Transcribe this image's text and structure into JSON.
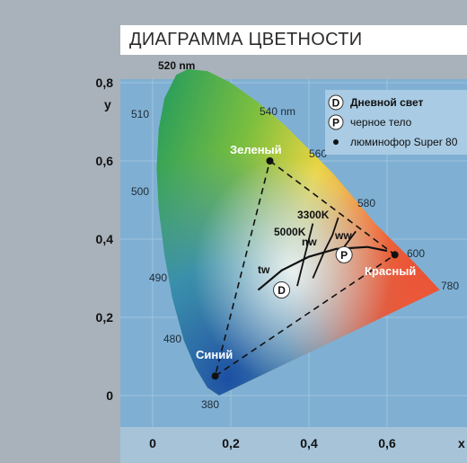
{
  "title": "ДИАГРАММА ЦВЕТНОСТИ",
  "colors": {
    "background": "#a9b2ba",
    "plot_background": "#7fb0d3",
    "green_region": "#3aa84a",
    "red_region": "#e8503a",
    "blue_region": "#1f5fa8"
  },
  "chart_data": {
    "type": "scatter",
    "title": "ДИАГРАММА ЦВЕТНОСТИ",
    "xlabel": "x",
    "ylabel": "y",
    "xlim": [
      0,
      0.8
    ],
    "ylim": [
      0,
      0.8
    ],
    "x_ticks": [
      "0",
      "0,2",
      "0,4",
      "0,6"
    ],
    "x_tick_values": [
      0,
      0.2,
      0.4,
      0.6
    ],
    "y_ticks": [
      "0",
      "0,2",
      "0,4",
      "0,6",
      "0,8"
    ],
    "y_tick_values": [
      0,
      0.2,
      0.4,
      0.6,
      0.8
    ],
    "grid": true,
    "spectral_locus_labels": [
      {
        "label": "520 nm",
        "x": 0.08,
        "y": 0.85
      },
      {
        "label": "540 nm",
        "x": 0.27,
        "y": 0.73
      },
      {
        "label": "560 nm",
        "x": 0.4,
        "y": 0.62
      },
      {
        "label": "580 nm",
        "x": 0.5,
        "y": 0.5
      },
      {
        "label": "600 nm",
        "x": 0.63,
        "y": 0.37
      },
      {
        "label": "780 nm",
        "x": 0.73,
        "y": 0.27
      },
      {
        "label": "510 nm",
        "x": 0.01,
        "y": 0.72
      },
      {
        "label": "500 nm",
        "x": 0.01,
        "y": 0.52
      },
      {
        "label": "490 nm",
        "x": 0.03,
        "y": 0.3
      },
      {
        "label": "480 nm",
        "x": 0.08,
        "y": 0.15
      },
      {
        "label": "380 nm",
        "x": 0.17,
        "y": 0.0
      }
    ],
    "spectral_locus_display": [
      "520 nm",
      "540 nm",
      "560",
      "580",
      "600",
      "780",
      "510",
      "500",
      "490",
      "480",
      "380"
    ],
    "phosphor_points": [
      {
        "name": "Зеленый",
        "x": 0.3,
        "y": 0.6
      },
      {
        "name": "Красный",
        "x": 0.62,
        "y": 0.36
      },
      {
        "name": "Синий",
        "x": 0.16,
        "y": 0.05
      }
    ],
    "cct_labels": [
      "3300K",
      "5000K"
    ],
    "zone_labels": [
      "tw",
      "nw",
      "ww"
    ],
    "daylight_point": {
      "x": 0.33,
      "y": 0.27
    },
    "blackbody_point": {
      "x": 0.49,
      "y": 0.36
    },
    "legend": {
      "placement": "top-right",
      "items": [
        {
          "symbol": "D",
          "label": "Дневной свет"
        },
        {
          "symbol": "P",
          "label": "черное тело"
        },
        {
          "symbol": "dot",
          "label": "люминофор Super 80"
        }
      ]
    }
  }
}
